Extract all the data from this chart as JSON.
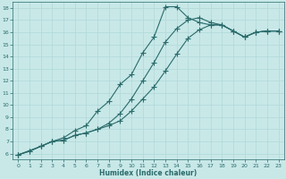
{
  "xlabel": "Humidex (Indice chaleur)",
  "bg_color": "#c8e8e8",
  "line_color": "#2a6b6b",
  "grid_color": "#b0d8d8",
  "xlim": [
    -0.5,
    23.5
  ],
  "ylim": [
    5.5,
    18.5
  ],
  "xticks": [
    0,
    1,
    2,
    3,
    4,
    5,
    6,
    7,
    8,
    9,
    10,
    11,
    12,
    13,
    14,
    15,
    16,
    17,
    18,
    19,
    20,
    21,
    22,
    23
  ],
  "yticks": [
    6,
    7,
    8,
    9,
    10,
    11,
    12,
    13,
    14,
    15,
    16,
    17,
    18
  ],
  "line1_x": [
    0,
    1,
    2,
    3,
    4,
    5,
    6,
    7,
    8,
    9,
    10,
    11,
    12,
    13,
    14,
    15,
    16,
    17,
    18,
    19,
    20,
    21,
    22,
    23
  ],
  "line1_y": [
    5.9,
    6.2,
    6.6,
    7.0,
    7.1,
    7.5,
    7.7,
    8.0,
    8.3,
    8.7,
    9.5,
    10.5,
    11.5,
    12.8,
    14.2,
    15.5,
    16.2,
    16.6,
    16.6,
    16.1,
    15.6,
    16.0,
    16.1,
    16.1
  ],
  "line2_x": [
    0,
    1,
    2,
    3,
    4,
    5,
    6,
    7,
    8,
    9,
    10,
    11,
    12,
    13,
    14,
    15,
    16,
    17,
    18,
    19,
    20,
    21,
    22,
    23
  ],
  "line2_y": [
    5.9,
    6.2,
    6.6,
    7.0,
    7.1,
    7.5,
    7.7,
    8.0,
    8.5,
    9.3,
    10.5,
    12.0,
    13.5,
    15.2,
    16.3,
    17.0,
    17.2,
    16.8,
    16.6,
    16.1,
    15.6,
    16.0,
    16.1,
    16.1
  ],
  "line3_x": [
    0,
    2,
    3,
    4,
    5,
    6,
    7,
    8,
    9,
    10,
    11,
    12,
    13,
    14,
    15,
    16,
    17,
    18,
    19,
    20,
    21,
    22,
    23
  ],
  "line3_y": [
    5.9,
    6.6,
    7.0,
    7.3,
    7.9,
    8.3,
    9.5,
    10.3,
    11.7,
    12.5,
    14.3,
    15.6,
    18.1,
    18.1,
    17.2,
    16.8,
    16.6,
    16.6,
    16.1,
    15.6,
    16.0,
    16.1,
    16.1
  ],
  "marker": "+",
  "markersize": 4,
  "linewidth": 0.8
}
